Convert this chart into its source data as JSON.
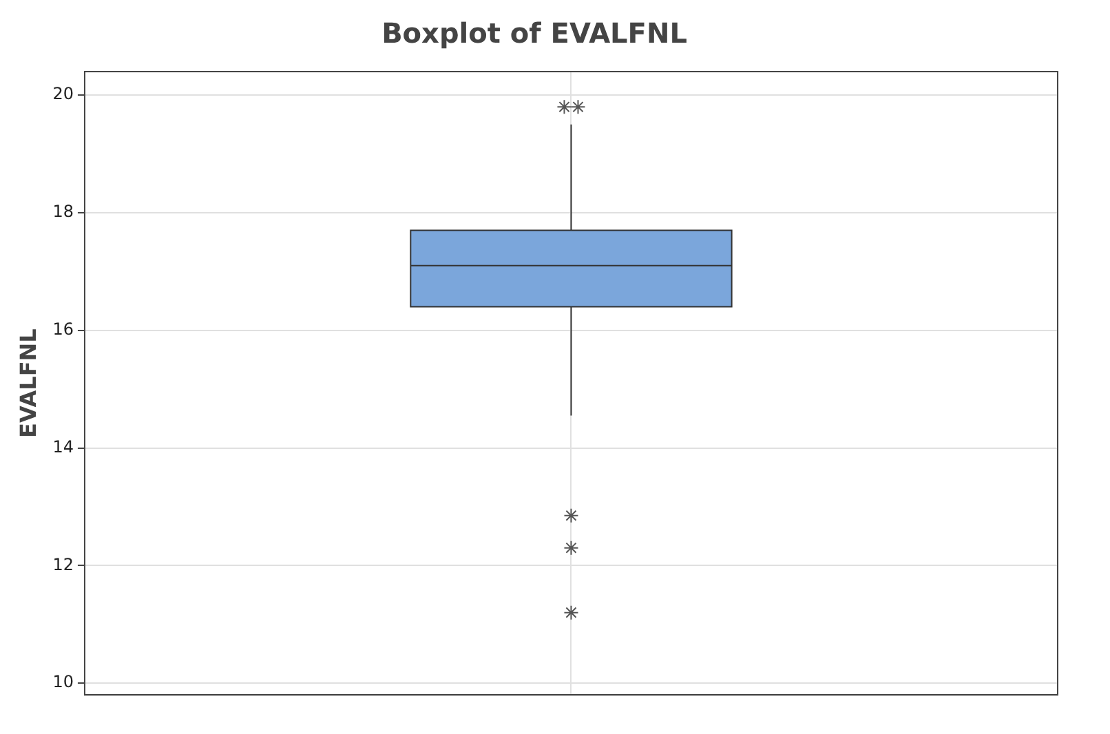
{
  "chart_data": {
    "type": "box",
    "title": "Boxplot of EVALFNL",
    "ylabel": "EVALFNL",
    "categories": [
      null
    ],
    "color": "#7ba6db",
    "boxes": [
      {
        "low": 14.55,
        "q1": 16.4,
        "median": 17.1,
        "q3": 17.7,
        "high": 19.5,
        "outliers": [
          19.8,
          19.8,
          12.85,
          12.3,
          11.2
        ]
      }
    ],
    "ylim": [
      9.8,
      20.4
    ],
    "yticks": [
      10,
      12,
      14,
      16,
      18,
      20
    ],
    "grid": true,
    "marker": "star"
  }
}
